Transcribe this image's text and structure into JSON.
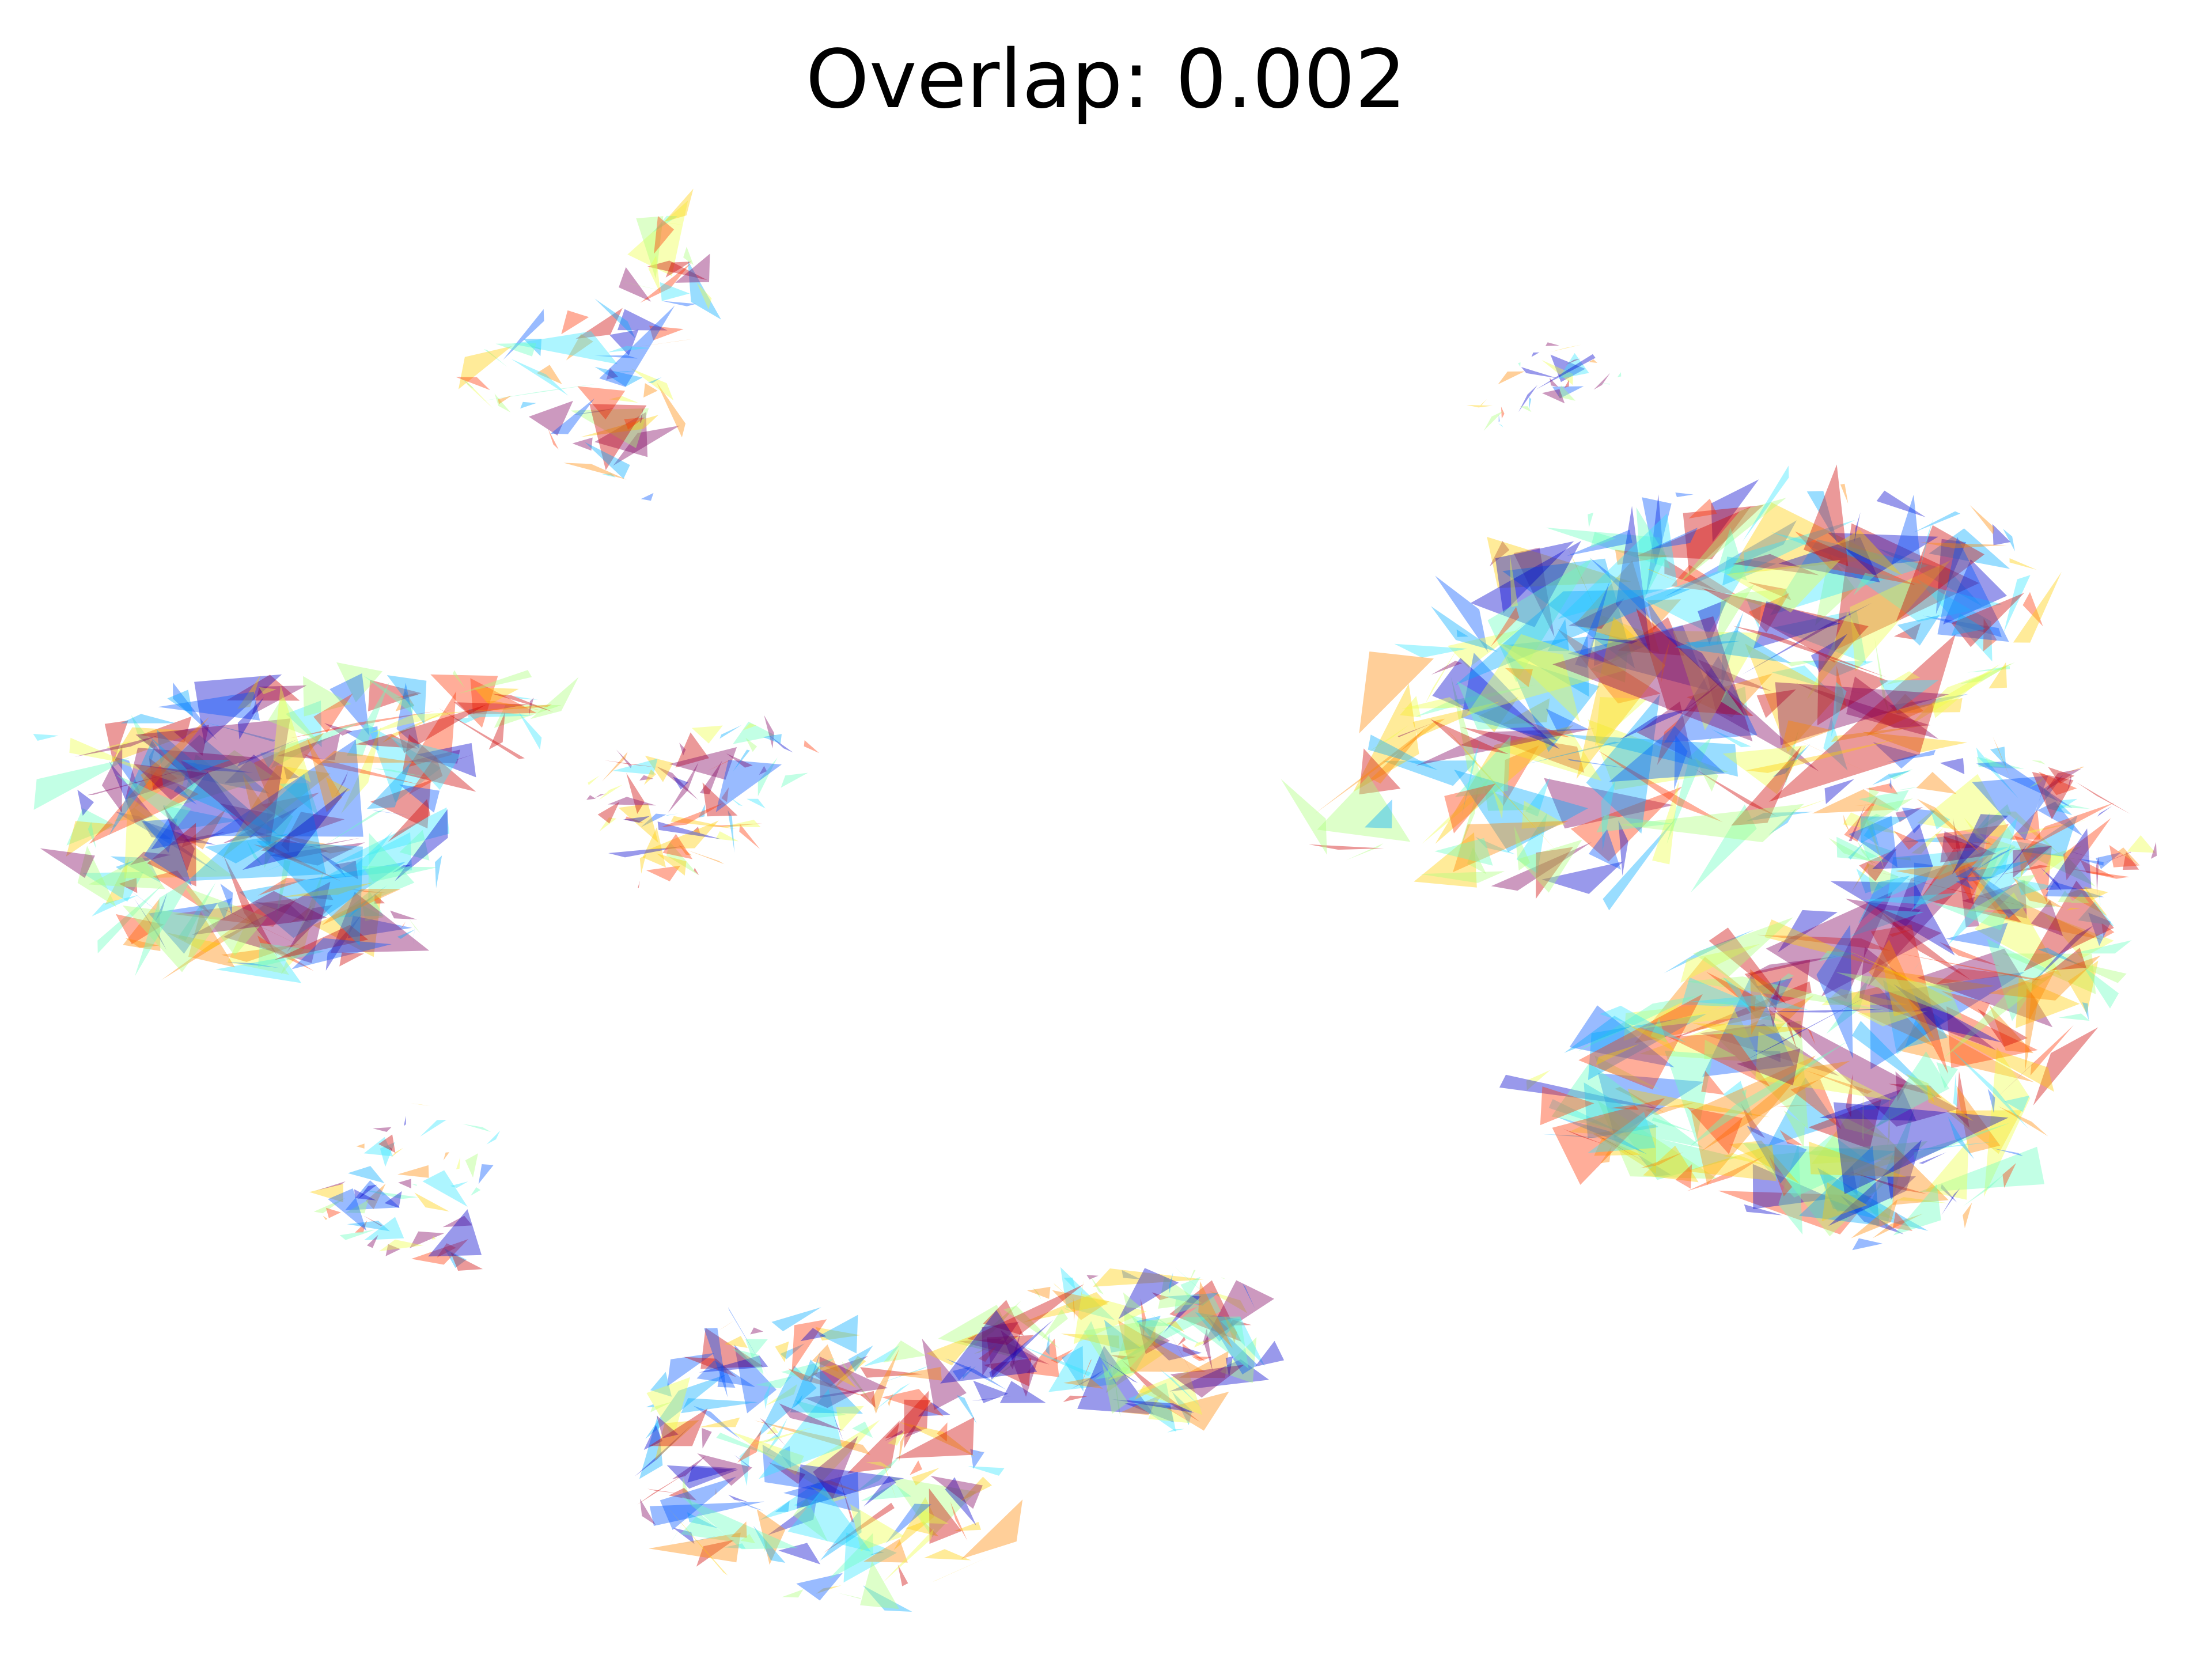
{
  "chart_data": {
    "type": "scatter",
    "mark_shape": "triangle",
    "title": "Overlap: 0.002",
    "xlabel": "",
    "ylabel": "",
    "axes_visible": false,
    "grid": false,
    "legend": "none",
    "colormap": [
      "#0000cc",
      "#0055ff",
      "#00aaff",
      "#33e6ff",
      "#66ffbf",
      "#aaff77",
      "#eeff44",
      "#ffcc00",
      "#ff8800",
      "#ff3300",
      "#cc0000",
      "#800060"
    ],
    "mark_opacity": 0.4,
    "series": [
      {
        "cluster": "top-center",
        "triangle_count": 70
      },
      {
        "cluster": "left",
        "triangle_count": 230
      },
      {
        "cluster": "left-side-lobe",
        "triangle_count": 70
      },
      {
        "cluster": "small-left-lower",
        "triangle_count": 55
      },
      {
        "cluster": "bottom-center",
        "triangle_count": 180
      },
      {
        "cluster": "bottom-center-arm",
        "triangle_count": 120
      },
      {
        "cluster": "small-top-right",
        "triangle_count": 30
      },
      {
        "cluster": "right-upper",
        "triangle_count": 260
      },
      {
        "cluster": "right-lower",
        "triangle_count": 260
      },
      {
        "cluster": "right-link",
        "triangle_count": 100
      }
    ]
  }
}
